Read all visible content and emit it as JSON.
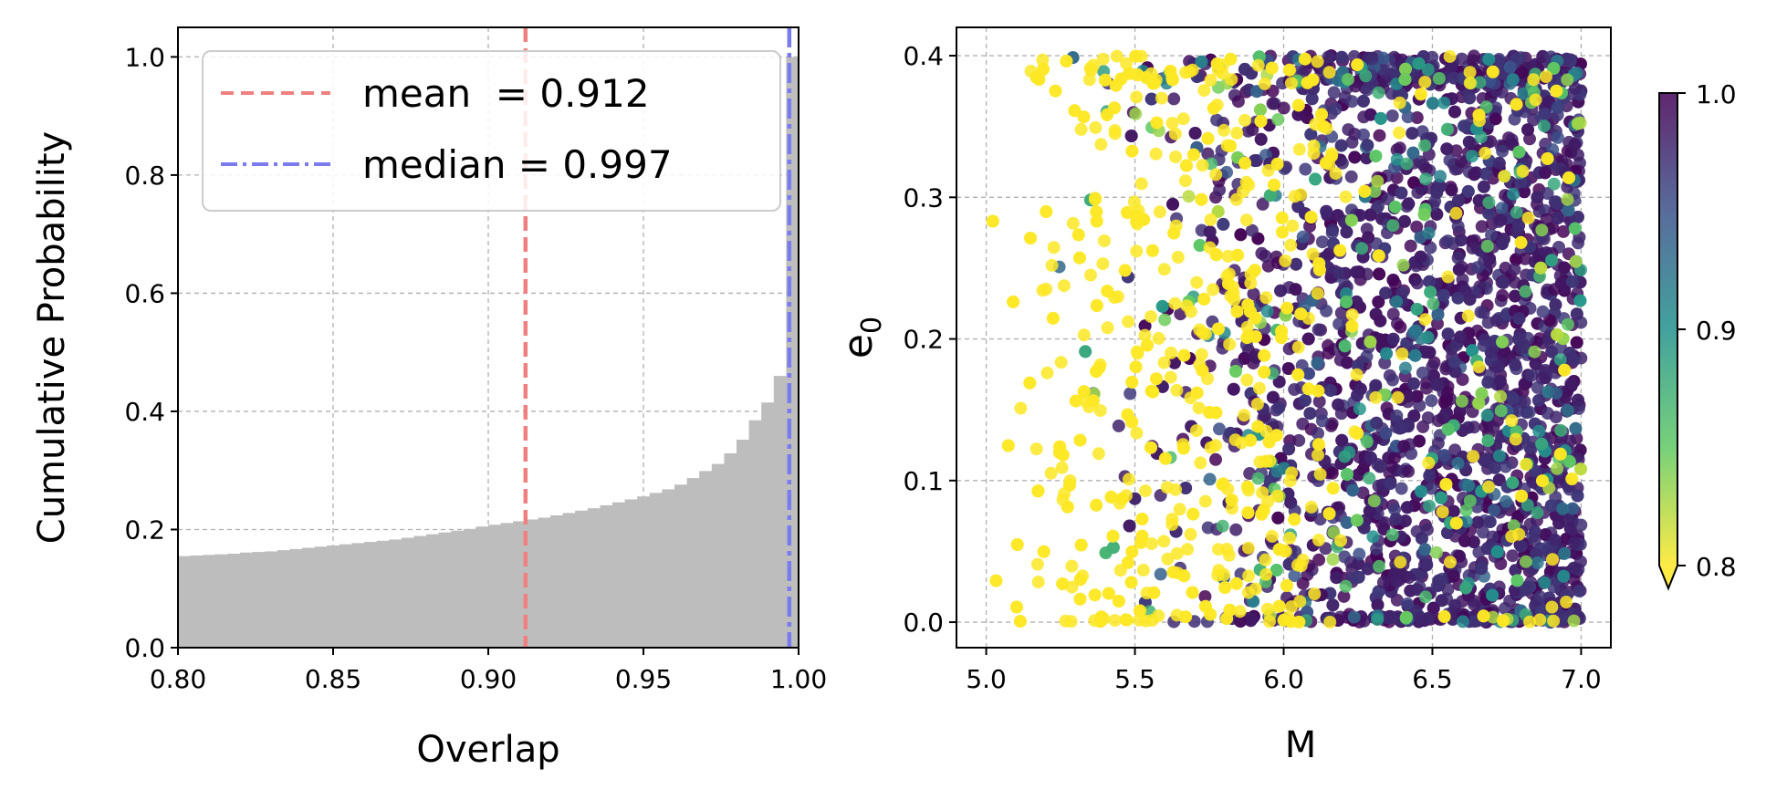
{
  "colors": {
    "hist_fill": "#bdbdbd",
    "mean_line": "#f08080",
    "median_line": "#7b7bf0",
    "viridis": [
      "#440154",
      "#3b528b",
      "#21918c",
      "#5ec962",
      "#fde725"
    ]
  },
  "chart_data": [
    {
      "type": "bar",
      "subtype": "cumulative-histogram",
      "xlabel": "Overlap",
      "ylabel": "Cumulative Probability",
      "xlim": [
        0.8,
        1.0
      ],
      "ylim": [
        0.0,
        1.05
      ],
      "xticks": [
        "0.80",
        "0.85",
        "0.90",
        "0.95",
        "1.00"
      ],
      "yticks": [
        "0.0",
        "0.2",
        "0.4",
        "0.6",
        "0.8",
        "1.0"
      ],
      "grid": true,
      "bin_width": 0.004,
      "bin_left_edges": [
        0.8,
        0.804,
        0.808,
        0.812,
        0.816,
        0.82,
        0.824,
        0.828,
        0.832,
        0.836,
        0.84,
        0.844,
        0.848,
        0.852,
        0.856,
        0.86,
        0.864,
        0.868,
        0.872,
        0.876,
        0.88,
        0.884,
        0.888,
        0.892,
        0.896,
        0.9,
        0.904,
        0.908,
        0.912,
        0.916,
        0.92,
        0.924,
        0.928,
        0.932,
        0.936,
        0.94,
        0.944,
        0.948,
        0.952,
        0.956,
        0.96,
        0.964,
        0.968,
        0.972,
        0.976,
        0.98,
        0.984,
        0.988,
        0.992,
        0.996
      ],
      "values": [
        0.155,
        0.156,
        0.157,
        0.158,
        0.159,
        0.161,
        0.162,
        0.163,
        0.165,
        0.167,
        0.169,
        0.171,
        0.173,
        0.175,
        0.177,
        0.179,
        0.181,
        0.183,
        0.186,
        0.189,
        0.192,
        0.195,
        0.198,
        0.201,
        0.205,
        0.208,
        0.211,
        0.214,
        0.217,
        0.22,
        0.224,
        0.228,
        0.232,
        0.236,
        0.241,
        0.246,
        0.251,
        0.256,
        0.262,
        0.268,
        0.276,
        0.287,
        0.299,
        0.311,
        0.329,
        0.352,
        0.385,
        0.415,
        0.46,
        1.0
      ],
      "lines": [
        {
          "label": "mean  = 0.912",
          "x": 0.912,
          "style": "dashed",
          "color": "#f08080"
        },
        {
          "label": "median = 0.997",
          "x": 0.997,
          "style": "dashdot",
          "color": "#7b7bf0"
        }
      ],
      "legend": "upper-center"
    },
    {
      "type": "scatter",
      "xlabel": "M",
      "ylabel": "e",
      "ylabel_subscript": "0",
      "xlim": [
        4.9,
        7.1
      ],
      "ylim": [
        -0.018,
        0.42
      ],
      "xticks": [
        "5.0",
        "5.5",
        "6.0",
        "6.5",
        "7.0"
      ],
      "yticks": [
        "0.0",
        "0.1",
        "0.2",
        "0.3",
        "0.4"
      ],
      "grid": true,
      "color_by": "overlap",
      "points_note": "points are a representative resampling of the visible point cloud",
      "n_points": 3800,
      "colorbar": {
        "range": [
          0.8,
          1.0
        ],
        "ticks": [
          "0.8",
          "0.9",
          "1.0"
        ],
        "colormap": "viridis_r",
        "extend": "min"
      }
    }
  ]
}
